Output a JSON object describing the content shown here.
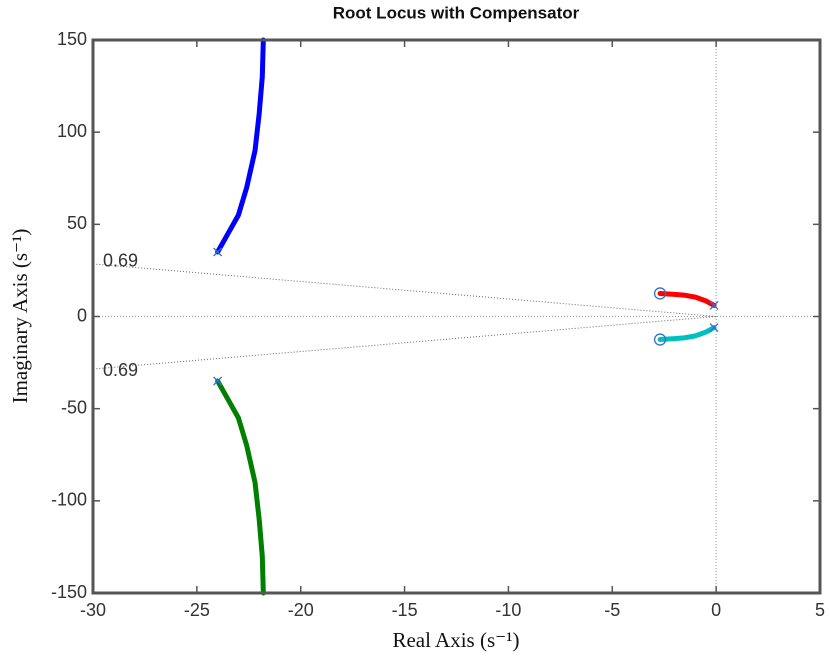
{
  "chart_data": {
    "type": "rootlocus",
    "title": "Root Locus with Compensator",
    "x_label": "Real Axis (s⁻¹)",
    "y_label": "Imaginary Axis (s⁻¹)",
    "xlim": [
      -30,
      5
    ],
    "ylim": [
      -150,
      150
    ],
    "xticks": [
      -30,
      -25,
      -20,
      -15,
      -10,
      -5,
      0,
      5
    ],
    "yticks": [
      -150,
      -100,
      -50,
      0,
      50,
      100,
      150
    ],
    "series": [
      {
        "color": "#0000ff",
        "x": [
          -24,
          -23.5,
          -23,
          -22.6,
          -22.2,
          -22,
          -21.85,
          -21.8
        ],
        "y": [
          35,
          45,
          55,
          70,
          90,
          110,
          130,
          150
        ]
      },
      {
        "color": "#007f00",
        "x": [
          -24,
          -23.5,
          -23,
          -22.6,
          -22.2,
          -22,
          -21.85,
          -21.8
        ],
        "y": [
          -35,
          -45,
          -55,
          -70,
          -90,
          -110,
          -130,
          -150
        ]
      },
      {
        "color": "#ff0000",
        "x": [
          -0.1,
          -0.5,
          -1,
          -1.5,
          -2,
          -2.7
        ],
        "y": [
          6,
          8.5,
          10.5,
          11.5,
          12,
          12.5
        ]
      },
      {
        "color": "#00bfbf",
        "x": [
          -0.1,
          -0.5,
          -1,
          -1.5,
          -2,
          -2.7
        ],
        "y": [
          -6,
          -8.5,
          -10.5,
          -11.5,
          -12,
          -12.5
        ]
      }
    ],
    "poles": {
      "x": [
        -24,
        -24,
        -0.1,
        -0.1
      ],
      "y": [
        35,
        -35,
        6,
        -6
      ]
    },
    "zeros": {
      "x": [
        -2.7,
        -2.7
      ],
      "y": [
        12.5,
        -12.5
      ]
    },
    "damping_lines": [
      {
        "label": "0.69",
        "x": [
          0,
          -30
        ],
        "y": [
          0,
          28.5
        ]
      },
      {
        "label": "0.69",
        "x": [
          0,
          -30
        ],
        "y": [
          0,
          -28.5
        ]
      }
    ]
  }
}
